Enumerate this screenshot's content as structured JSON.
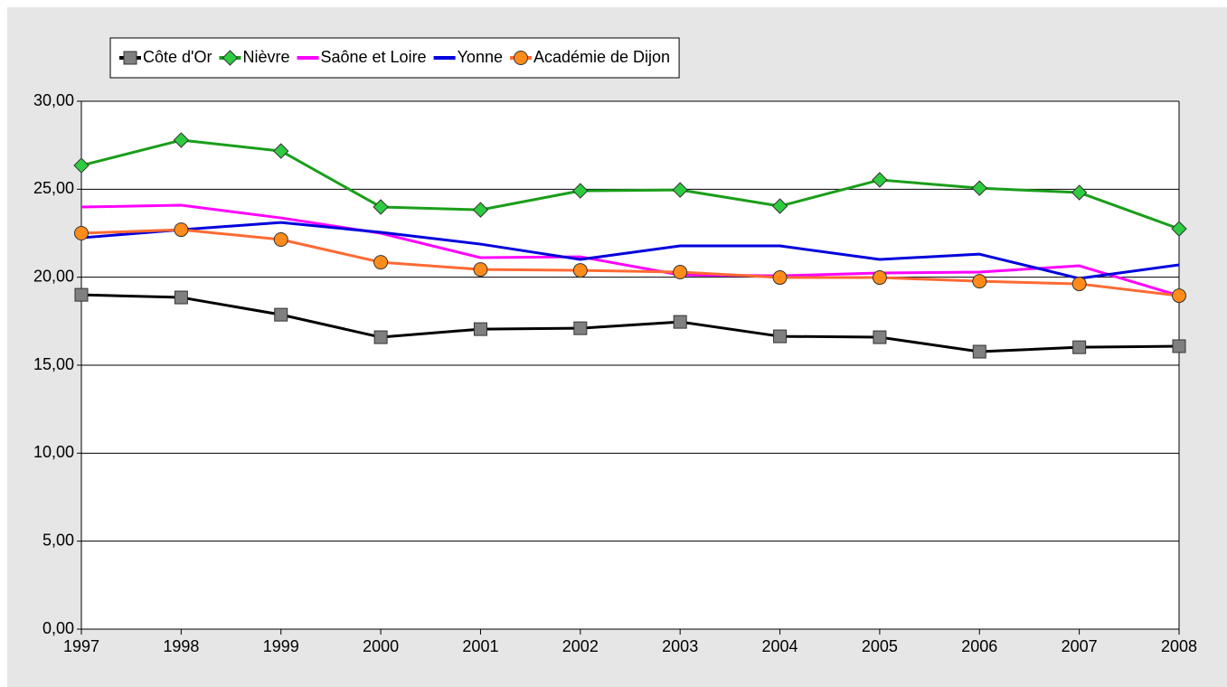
{
  "chart_data": {
    "type": "line",
    "categories": [
      "1997",
      "1998",
      "1999",
      "2000",
      "2001",
      "2002",
      "2003",
      "2004",
      "2005",
      "2006",
      "2007",
      "2008"
    ],
    "series": [
      {
        "name": "Côte d'Or",
        "color": "#000000",
        "marker": "square",
        "marker_color": "#808080",
        "values": [
          19.0,
          18.85,
          17.87,
          16.59,
          17.05,
          17.1,
          17.46,
          16.64,
          16.59,
          15.77,
          16.02,
          16.08
        ]
      },
      {
        "name": "Nièvre",
        "color": "#1a9e1a",
        "marker": "diamond",
        "marker_color": "#2ecc40",
        "values": [
          26.35,
          27.79,
          27.17,
          23.99,
          23.83,
          24.91,
          24.96,
          24.04,
          25.53,
          25.06,
          24.81,
          22.75
        ]
      },
      {
        "name": "Saône et Loire",
        "color": "#ff00ff",
        "values": [
          23.99,
          24.09,
          23.37,
          22.5,
          21.11,
          21.16,
          20.13,
          20.08,
          20.24,
          20.29,
          20.65,
          18.95
        ]
      },
      {
        "name": "Yonne",
        "color": "#0000dd",
        "values": [
          22.24,
          22.7,
          23.11,
          22.55,
          21.88,
          21.01,
          21.78,
          21.78,
          21.01,
          21.31,
          19.93,
          20.7
        ]
      },
      {
        "name": "Académie de Dijon",
        "color": "#ff6a33",
        "marker": "circle",
        "marker_color": "#ff8c1a",
        "values": [
          22.5,
          22.7,
          22.14,
          20.85,
          20.44,
          20.39,
          20.29,
          19.98,
          19.98,
          19.77,
          19.62,
          18.95
        ]
      }
    ],
    "ylim": [
      0,
      30
    ],
    "yticks": [
      {
        "value": 0,
        "label": "0,00"
      },
      {
        "value": 5,
        "label": "5,00"
      },
      {
        "value": 10,
        "label": "10,00"
      },
      {
        "value": 15,
        "label": "15,00"
      },
      {
        "value": 20,
        "label": "20,00"
      },
      {
        "value": 25,
        "label": "25,00"
      },
      {
        "value": 30,
        "label": "30,00"
      }
    ],
    "grid": true,
    "legend": "top-left"
  }
}
